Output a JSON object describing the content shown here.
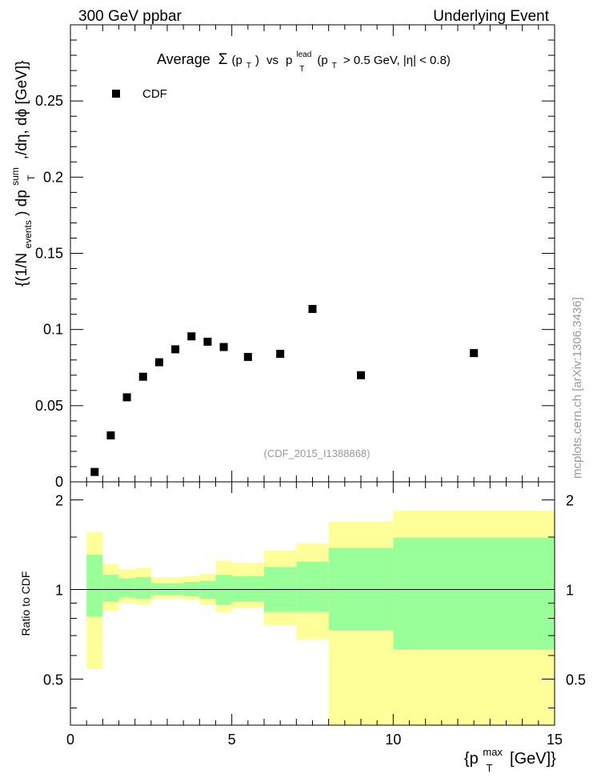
{
  "header": {
    "left": "300 GeV ppbar",
    "right": "Underlying Event"
  },
  "side_label": "mcplots.cern.ch [arXiv:1306.3436]",
  "chart_data": [
    {
      "type": "scatter",
      "title": {
        "prefix": "Average",
        "sigma": "Σ",
        "pt_open": "(p",
        "pt_sub": "T",
        "pt_close": ")",
        "vs": "vs",
        "p": "p",
        "lead_sup": "lead",
        "lead_sub": "T",
        "cut_open": "(p",
        "cut_sub": "T",
        "cut_rest": "> 0.5 GeV, |η| < 0.8)"
      },
      "ylabel": {
        "open": "{(1/N",
        "events_sub": "events",
        "mid": ") dp",
        "sum_sup": "sum",
        "t_sub": "T",
        "tail": ",/dη, dϕ [GeV]}"
      },
      "analysis_tag": "(CDF_2015_I1388868)",
      "ylim": [
        0,
        0.3
      ],
      "yticks": [
        0.05,
        0.1,
        0.15,
        0.2,
        0.25
      ],
      "ytick_labels": [
        "0.05",
        "0.1",
        "0.15",
        "0.2",
        "0.25"
      ],
      "y_zero_label": "0",
      "series": [
        {
          "name": "CDF",
          "marker": "square",
          "color": "#000000",
          "x": [
            0.75,
            1.25,
            1.75,
            2.25,
            2.75,
            3.25,
            3.75,
            4.25,
            4.75,
            5.5,
            6.5,
            7.5,
            9.0,
            12.5
          ],
          "y": [
            0.0065,
            0.0305,
            0.0555,
            0.069,
            0.0785,
            0.087,
            0.0955,
            0.092,
            0.0885,
            0.082,
            0.084,
            0.1135,
            0.07,
            0.0845
          ]
        }
      ]
    },
    {
      "type": "area",
      "ylabel": "Ratio to CDF",
      "xlabel": {
        "open": "{p",
        "max_sup": "max",
        "t_sub": "T",
        "tail": "[GeV]}"
      },
      "xlim": [
        0,
        15
      ],
      "ylim": [
        0.35,
        2.3
      ],
      "xticks": [
        0,
        5,
        10,
        15
      ],
      "xtick_labels": [
        "0",
        "5",
        "10",
        "15"
      ],
      "yticks": [
        0.5,
        1,
        2
      ],
      "ytick_labels": [
        "0.5",
        "1",
        "2"
      ],
      "reference_line": 1,
      "bins": [
        {
          "lo": 0.5,
          "hi": 1.0,
          "stat_lo": 0.81,
          "stat_hi": 1.31,
          "tot_lo": 0.54,
          "tot_hi": 1.56
        },
        {
          "lo": 1.0,
          "hi": 1.5,
          "stat_lo": 0.91,
          "stat_hi": 1.12,
          "tot_lo": 0.85,
          "tot_hi": 1.22
        },
        {
          "lo": 1.5,
          "hi": 2.0,
          "stat_lo": 0.94,
          "stat_hi": 1.09,
          "tot_lo": 0.9,
          "tot_hi": 1.17
        },
        {
          "lo": 2.0,
          "hi": 2.5,
          "stat_lo": 0.93,
          "stat_hi": 1.1,
          "tot_lo": 0.89,
          "tot_hi": 1.18
        },
        {
          "lo": 2.5,
          "hi": 3.0,
          "stat_lo": 0.96,
          "stat_hi": 1.05,
          "tot_lo": 0.93,
          "tot_hi": 1.1
        },
        {
          "lo": 3.0,
          "hi": 3.5,
          "stat_lo": 0.96,
          "stat_hi": 1.05,
          "tot_lo": 0.93,
          "tot_hi": 1.1
        },
        {
          "lo": 3.5,
          "hi": 4.0,
          "stat_lo": 0.95,
          "stat_hi": 1.06,
          "tot_lo": 0.92,
          "tot_hi": 1.11
        },
        {
          "lo": 4.0,
          "hi": 4.5,
          "stat_lo": 0.93,
          "stat_hi": 1.07,
          "tot_lo": 0.89,
          "tot_hi": 1.13
        },
        {
          "lo": 4.5,
          "hi": 5.0,
          "stat_lo": 0.89,
          "stat_hi": 1.12,
          "tot_lo": 0.84,
          "tot_hi": 1.25
        },
        {
          "lo": 5.0,
          "hi": 6.0,
          "stat_lo": 0.91,
          "stat_hi": 1.11,
          "tot_lo": 0.87,
          "tot_hi": 1.23
        },
        {
          "lo": 6.0,
          "hi": 7.0,
          "stat_lo": 0.84,
          "stat_hi": 1.19,
          "tot_lo": 0.76,
          "tot_hi": 1.35
        },
        {
          "lo": 7.0,
          "hi": 8.0,
          "stat_lo": 0.84,
          "stat_hi": 1.24,
          "tot_lo": 0.68,
          "tot_hi": 1.43
        },
        {
          "lo": 8.0,
          "hi": 10.0,
          "stat_lo": 0.73,
          "stat_hi": 1.38,
          "tot_lo": 0.35,
          "tot_hi": 1.69
        },
        {
          "lo": 10.0,
          "hi": 15.0,
          "stat_lo": 0.63,
          "stat_hi": 1.49,
          "tot_lo": 0.35,
          "tot_hi": 1.84
        }
      ],
      "colors": {
        "stat": "#99ff99",
        "total": "#ffff99",
        "axis": "#000000"
      }
    }
  ]
}
